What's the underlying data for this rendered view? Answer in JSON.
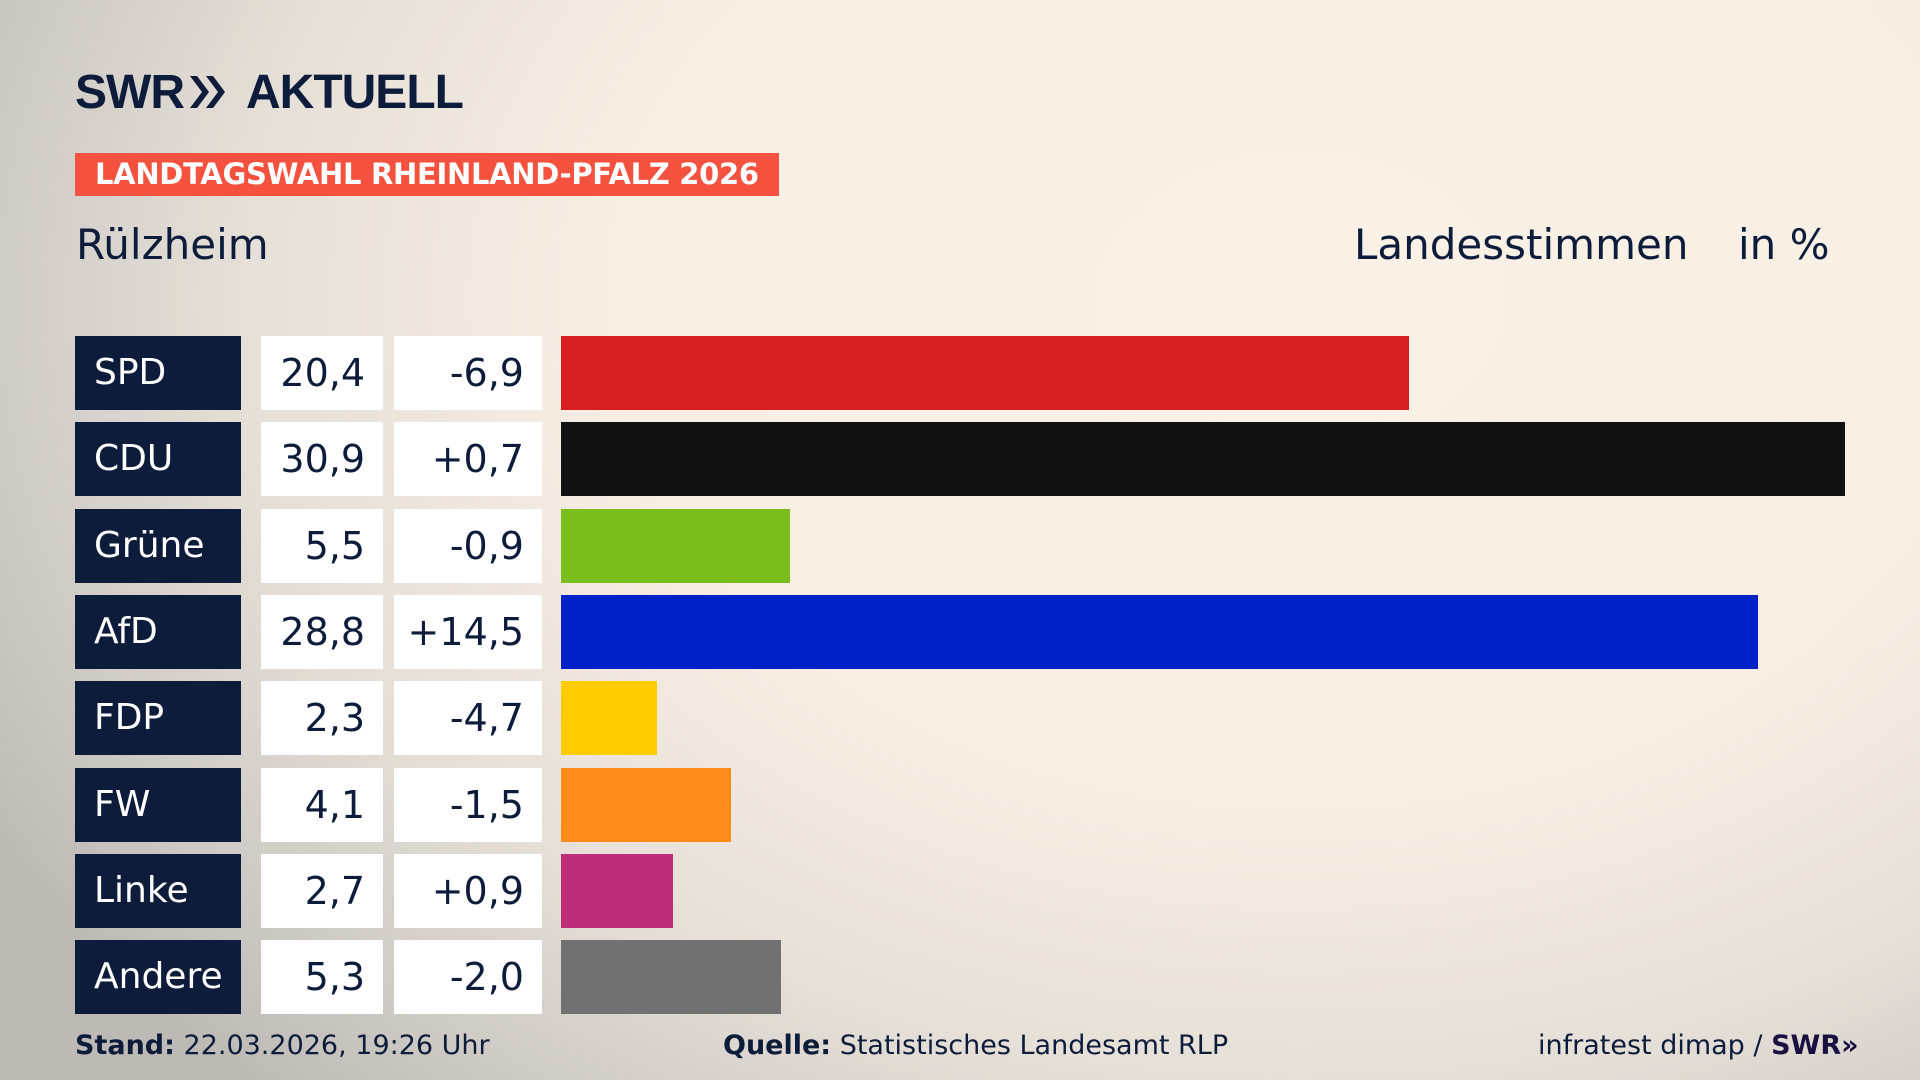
{
  "logo": {
    "brand": "SWR",
    "product": "AKTUELL"
  },
  "ribbon": "LANDTAGSWAHL RHEINLAND-PFALZ 2026",
  "place": "Rülzheim",
  "header": {
    "vote_type": "Landesstimmen",
    "unit": "in %"
  },
  "chart_data": {
    "type": "bar",
    "orientation": "horizontal",
    "categories": [
      "SPD",
      "CDU",
      "Grüne",
      "AfD",
      "FDP",
      "FW",
      "Linke",
      "Andere"
    ],
    "values": [
      20.4,
      30.9,
      5.5,
      28.8,
      2.3,
      4.1,
      2.7,
      5.3
    ],
    "value_labels": [
      "20,4",
      "30,9",
      "5,5",
      "28,8",
      "2,3",
      "4,1",
      "2,7",
      "5,3"
    ],
    "change_labels": [
      "-6,9",
      "+0,7",
      "-0,9",
      "+14,5",
      "-4,7",
      "-1,5",
      "+0,9",
      "-2,0"
    ],
    "changes": [
      -6.9,
      0.7,
      -0.9,
      14.5,
      -4.7,
      -1.5,
      0.9,
      -2.0
    ],
    "colors": [
      "#d71f21",
      "#121212",
      "#7abd1d",
      "#0021c8",
      "#ffcc00",
      "#ff8c1a",
      "#be2e78",
      "#717172"
    ],
    "xlim": [
      0,
      30.9
    ],
    "grid": false
  },
  "footer": {
    "stand_label": "Stand:",
    "stand_value": "22.03.2026, 19:26 Uhr",
    "source_label": "Quelle:",
    "source_value": "Statistisches Landesamt RLP",
    "credit": "infratest dimap /",
    "credit_brand": "SWR"
  }
}
